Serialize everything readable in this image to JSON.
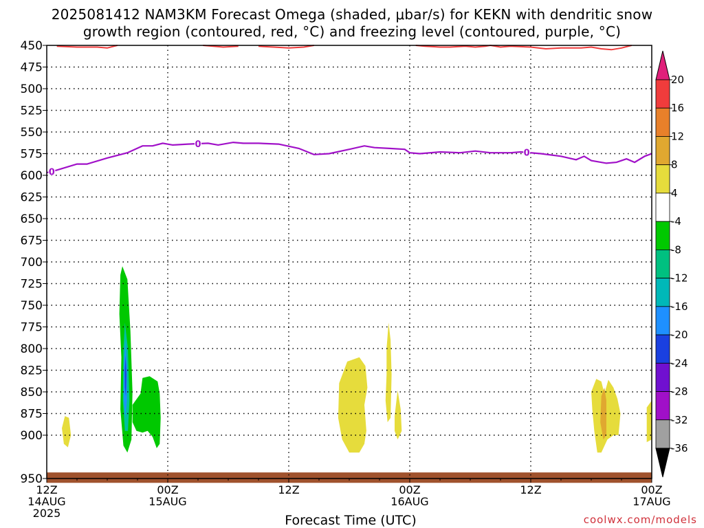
{
  "title": {
    "line1": "2025081412 NAM3KM Forecast Omega (shaded, μbar/s) for KEKN with dendritic snow",
    "line2": "growth region (contoured, red, °C) and freezing level (contoured, purple, °C)"
  },
  "xaxis_title": "Forecast Time (UTC)",
  "credit": "coolwx.com/models",
  "colors": {
    "dgz_contour": "#f03c3c",
    "freezing_contour": "#a010c8",
    "terrain": "#a0522d"
  },
  "chart_data": {
    "type": "heatmap",
    "title": "2025081412 NAM3KM Forecast Omega (shaded, μbar/s) for KEKN with dendritic snow growth region (contoured, red, °C) and freezing level (contoured, purple, °C)",
    "xlabel": "Forecast Time (UTC)",
    "ylabel": "",
    "x_ticks": [
      {
        "hour": 0,
        "lines": [
          "12Z",
          "14AUG",
          "2025"
        ]
      },
      {
        "hour": 12,
        "lines": [
          "00Z",
          "15AUG"
        ]
      },
      {
        "hour": 24,
        "lines": [
          "12Z"
        ]
      },
      {
        "hour": 36,
        "lines": [
          "00Z",
          "16AUG"
        ]
      },
      {
        "hour": 48,
        "lines": [
          "12Z"
        ]
      },
      {
        "hour": 60,
        "lines": [
          "00Z",
          "17AUG"
        ]
      }
    ],
    "xlim_hours": [
      0,
      60
    ],
    "ylim_hpa": [
      450,
      950
    ],
    "y_ticks": [
      450,
      475,
      500,
      525,
      550,
      575,
      600,
      625,
      650,
      675,
      700,
      725,
      750,
      775,
      800,
      825,
      850,
      875,
      900,
      950
    ],
    "grid": true,
    "colorbar": {
      "labels": [
        "20",
        "16",
        "12",
        "8",
        "4",
        "-4",
        "-8",
        "-12",
        "-16",
        "-20",
        "-24",
        "-28",
        "-32",
        "-36"
      ],
      "colors": [
        "#f03c3c",
        "#e8802a",
        "#e0a830",
        "#e6dc3c",
        "#ffffff",
        "#00c800",
        "#00c080",
        "#00b8b8",
        "#1e90ff",
        "#1a40e0",
        "#7010d0",
        "#a010c8",
        "#a0a0a0"
      ],
      "top_arrow_color": "#e0207a",
      "bottom_arrow_color": "#000000"
    },
    "freezing_level": {
      "label": "0",
      "points": [
        [
          0,
          597
        ],
        [
          1,
          594
        ],
        [
          3,
          587
        ],
        [
          4,
          587
        ],
        [
          6,
          580
        ],
        [
          8,
          574
        ],
        [
          9.5,
          566
        ],
        [
          10.5,
          566
        ],
        [
          11.5,
          563
        ],
        [
          12.5,
          565
        ],
        [
          14,
          564
        ],
        [
          16,
          563
        ],
        [
          17,
          565
        ],
        [
          18.5,
          562
        ],
        [
          19.5,
          563
        ],
        [
          21,
          563
        ],
        [
          23,
          564
        ],
        [
          25,
          569
        ],
        [
          26.5,
          576
        ],
        [
          28,
          575
        ],
        [
          30,
          570
        ],
        [
          31.5,
          566
        ],
        [
          32.5,
          568
        ],
        [
          34,
          569
        ],
        [
          35.5,
          570
        ],
        [
          36,
          574
        ],
        [
          37,
          575
        ],
        [
          39,
          573
        ],
        [
          41,
          574
        ],
        [
          42.5,
          572
        ],
        [
          44,
          574
        ],
        [
          46,
          574
        ],
        [
          47,
          573
        ],
        [
          49,
          575
        ],
        [
          51,
          578
        ],
        [
          52.5,
          582
        ],
        [
          53.3,
          578
        ],
        [
          54,
          583
        ],
        [
          55.5,
          586
        ],
        [
          56.5,
          585
        ],
        [
          57.5,
          581
        ],
        [
          58.3,
          585
        ],
        [
          59.3,
          578
        ],
        [
          60,
          575
        ]
      ],
      "label_hours": [
        0.5,
        15,
        47.6
      ]
    },
    "dgz_segments": [
      [
        [
          1,
          451
        ],
        [
          3,
          452
        ],
        [
          5,
          452
        ],
        [
          6,
          453
        ],
        [
          7,
          450
        ]
      ],
      [
        [
          15.5,
          450
        ],
        [
          17.5,
          452
        ],
        [
          19,
          451
        ]
      ],
      [
        [
          21,
          451
        ],
        [
          22.5,
          452
        ],
        [
          24,
          453
        ],
        [
          25.5,
          452
        ],
        [
          26.5,
          450
        ]
      ],
      [
        [
          36.6,
          450
        ],
        [
          37.5,
          451
        ],
        [
          39,
          452
        ],
        [
          40,
          452
        ],
        [
          41.5,
          451
        ],
        [
          42.5,
          452
        ],
        [
          43.5,
          451
        ],
        [
          44,
          450
        ],
        [
          45,
          452
        ],
        [
          46,
          451
        ],
        [
          48,
          452
        ],
        [
          49.5,
          454
        ],
        [
          51,
          453
        ],
        [
          53,
          453
        ],
        [
          54,
          452
        ],
        [
          55,
          454
        ],
        [
          56,
          455
        ],
        [
          57,
          453
        ],
        [
          58,
          450
        ]
      ]
    ],
    "omega_features": [
      {
        "name": "green-max",
        "value": -6,
        "color": "#00c800",
        "points": [
          [
            7.5,
            705
          ],
          [
            8,
            720
          ],
          [
            8.3,
            780
          ],
          [
            8.5,
            850
          ],
          [
            8.4,
            905
          ],
          [
            8,
            920
          ],
          [
            7.6,
            912
          ],
          [
            7.3,
            870
          ],
          [
            7.4,
            810
          ],
          [
            7.2,
            760
          ],
          [
            7.3,
            715
          ]
        ]
      },
      {
        "name": "green-secondary",
        "value": -5,
        "color": "#00c800",
        "points": [
          [
            8.5,
            865
          ],
          [
            9.3,
            852
          ],
          [
            9.5,
            834
          ],
          [
            10.2,
            832
          ],
          [
            11,
            838
          ],
          [
            11.2,
            852
          ],
          [
            11.3,
            880
          ],
          [
            11.2,
            910
          ],
          [
            10.9,
            915
          ],
          [
            10.5,
            902
          ],
          [
            10,
            895
          ],
          [
            9.5,
            897
          ],
          [
            8.9,
            895
          ],
          [
            8.5,
            885
          ]
        ]
      },
      {
        "name": "teal-core",
        "value": -14,
        "color": "#00c0a0",
        "points": [
          [
            7.75,
            770
          ],
          [
            8.05,
            800
          ],
          [
            8.2,
            860
          ],
          [
            8.05,
            895
          ],
          [
            7.75,
            895
          ],
          [
            7.55,
            860
          ],
          [
            7.6,
            800
          ]
        ]
      },
      {
        "name": "blue-core",
        "value": -17,
        "color": "#1e90ff",
        "points": [
          [
            7.8,
            790
          ],
          [
            7.95,
            820
          ],
          [
            7.95,
            860
          ],
          [
            7.8,
            880
          ],
          [
            7.65,
            860
          ],
          [
            7.65,
            820
          ]
        ]
      },
      {
        "name": "darkblue-core",
        "value": -21,
        "color": "#1a40e0",
        "points": [
          [
            7.82,
            808
          ],
          [
            7.9,
            830
          ],
          [
            7.85,
            855
          ],
          [
            7.75,
            845
          ],
          [
            7.74,
            825
          ]
        ]
      },
      {
        "name": "yellow-left",
        "value": 5,
        "color": "#e6dc3c",
        "points": [
          [
            1.5,
            892
          ],
          [
            1.8,
            878
          ],
          [
            2.2,
            880
          ],
          [
            2.4,
            900
          ],
          [
            2.1,
            914
          ],
          [
            1.7,
            910
          ]
        ]
      },
      {
        "name": "yellow-1",
        "value": 5,
        "color": "#e6dc3c",
        "points": [
          [
            29,
            840
          ],
          [
            29.8,
            815
          ],
          [
            31,
            810
          ],
          [
            31.6,
            820
          ],
          [
            31.8,
            845
          ],
          [
            31.5,
            865
          ],
          [
            31.7,
            895
          ],
          [
            31.5,
            910
          ],
          [
            31,
            920
          ],
          [
            30,
            920
          ],
          [
            29.3,
            905
          ],
          [
            28.9,
            880
          ]
        ]
      },
      {
        "name": "yellow-2",
        "value": 5,
        "color": "#e6dc3c",
        "points": [
          [
            33.7,
            800
          ],
          [
            33.9,
            770
          ],
          [
            34.1,
            790
          ],
          [
            34.2,
            830
          ],
          [
            34.1,
            880
          ],
          [
            33.8,
            885
          ],
          [
            33.6,
            860
          ],
          [
            33.7,
            830
          ]
        ]
      },
      {
        "name": "yellow-3",
        "value": 5,
        "color": "#e6dc3c",
        "points": [
          [
            34.5,
            878
          ],
          [
            34.8,
            848
          ],
          [
            35.1,
            870
          ],
          [
            35.2,
            895
          ],
          [
            34.8,
            905
          ],
          [
            34.5,
            895
          ]
        ]
      },
      {
        "name": "yellow-4",
        "value": 5,
        "color": "#e6dc3c",
        "points": [
          [
            54,
            850
          ],
          [
            54.5,
            835
          ],
          [
            55,
            838
          ],
          [
            55.3,
            852
          ],
          [
            55.7,
            836
          ],
          [
            56.2,
            845
          ],
          [
            56.6,
            858
          ],
          [
            56.9,
            875
          ],
          [
            56.7,
            900
          ],
          [
            56.2,
            900
          ],
          [
            55.6,
            905
          ],
          [
            55,
            920
          ],
          [
            54.6,
            920
          ],
          [
            54.3,
            895
          ],
          [
            54.1,
            870
          ]
        ]
      },
      {
        "name": "yellow-5",
        "value": 5,
        "color": "#e6dc3c",
        "points": [
          [
            59.5,
            868
          ],
          [
            60,
            860
          ],
          [
            60,
            905
          ],
          [
            59.5,
            908
          ]
        ]
      },
      {
        "name": "orange-1",
        "value": 10,
        "color": "#e0a830",
        "points": [
          [
            55,
            855
          ],
          [
            55.3,
            845
          ],
          [
            55.5,
            860
          ],
          [
            55.5,
            900
          ],
          [
            55.2,
            905
          ],
          [
            54.9,
            885
          ]
        ]
      }
    ],
    "terrain": {
      "label": "ground",
      "pressure_band": [
        943,
        955
      ]
    }
  }
}
